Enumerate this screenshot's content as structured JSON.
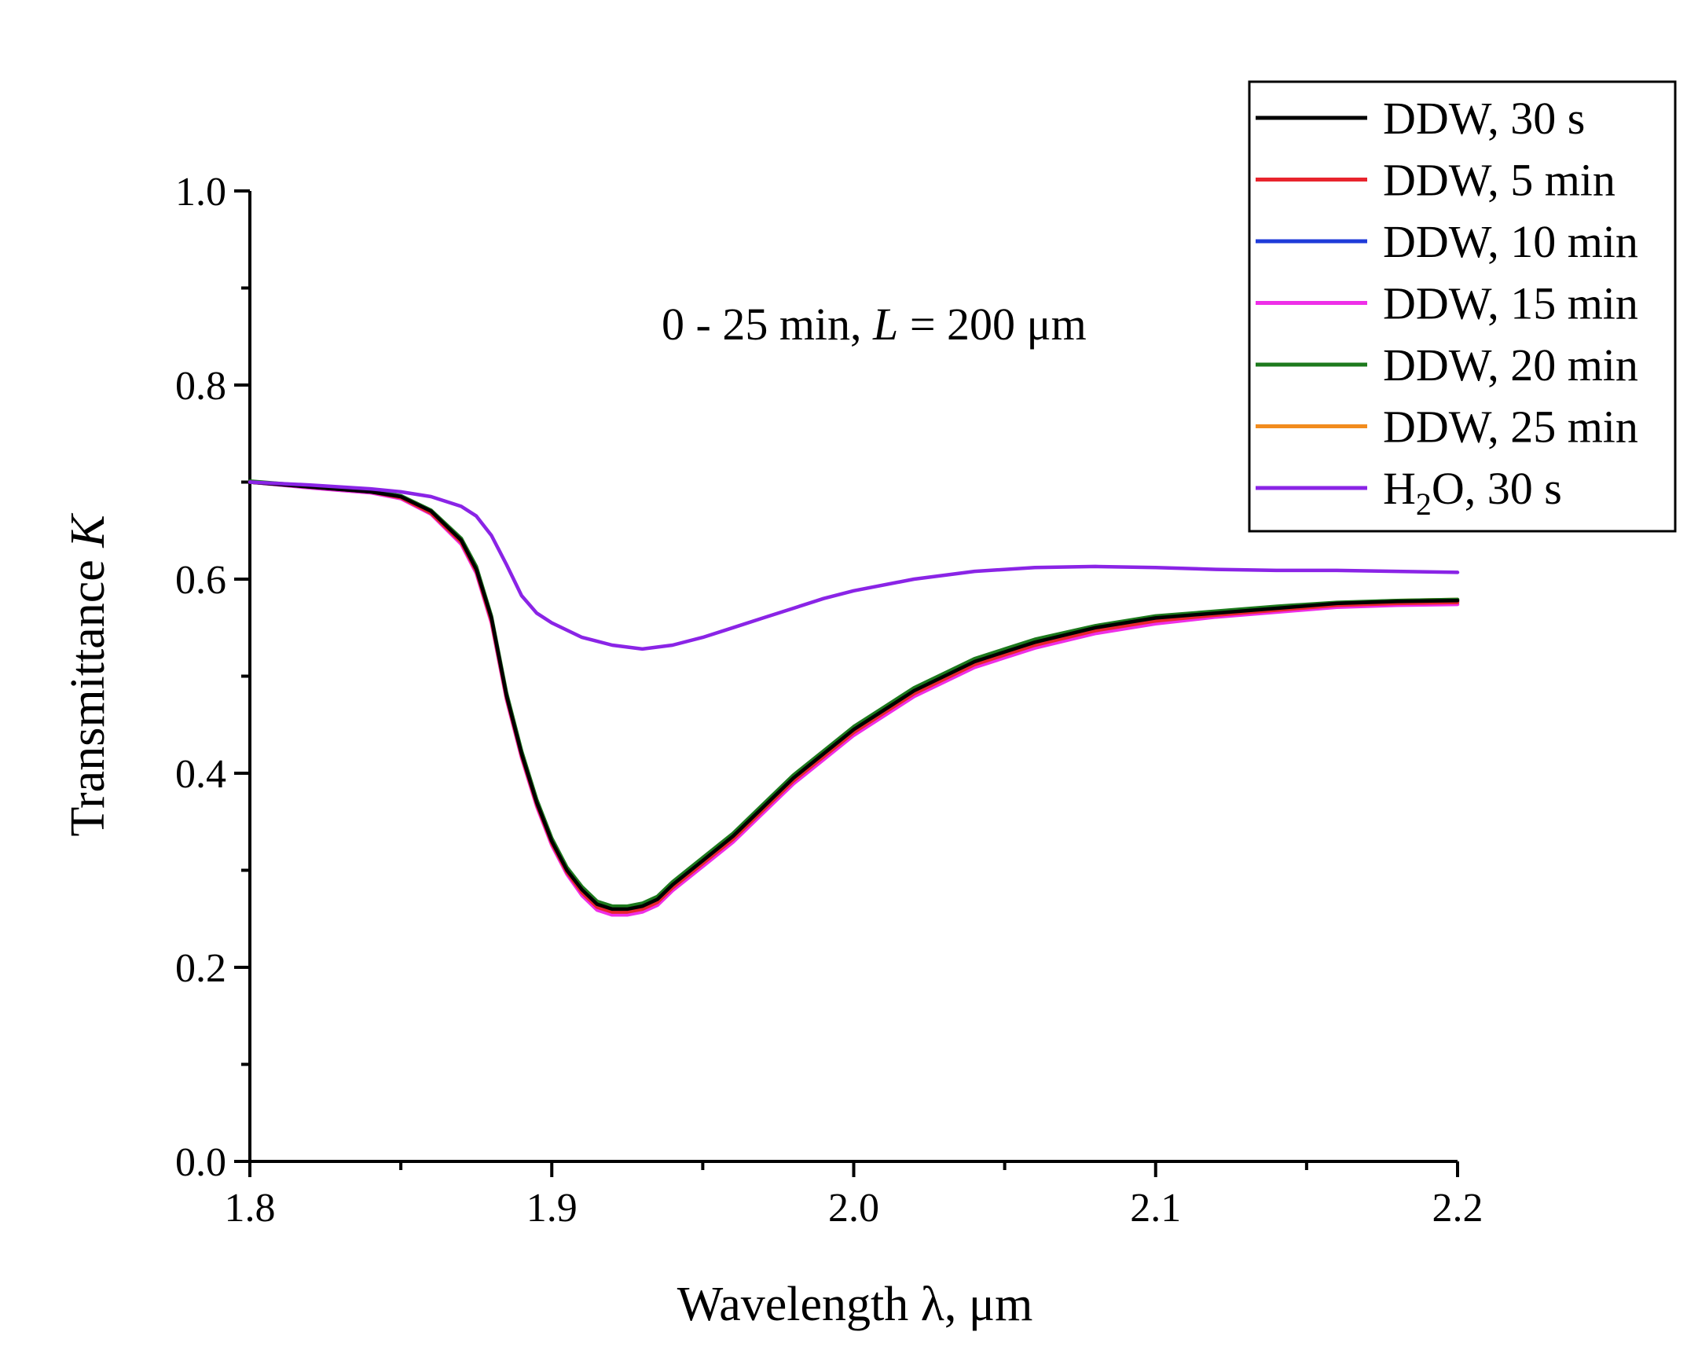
{
  "chart_data": {
    "type": "line",
    "xlabel": "Wavelength λ, μm",
    "ylabel_main": "Transmittance ",
    "ylabel_italic": "K",
    "xlim": [
      1.8,
      2.2
    ],
    "ylim": [
      0.0,
      1.0
    ],
    "x_ticks": [
      "1.8",
      "1.9",
      "2.0",
      "2.1",
      "2.2"
    ],
    "y_ticks": [
      "0.0",
      "0.2",
      "0.4",
      "0.6",
      "0.8",
      "1.0"
    ],
    "grid": false,
    "legend_position": "top-right",
    "annotation": {
      "prefix": "0 - 25 min, ",
      "italic": "L",
      "suffix": " = 200 μm"
    },
    "series": [
      {
        "name": "DDW, 30 s",
        "color": "#000000",
        "x": [
          1.8,
          1.82,
          1.84,
          1.85,
          1.86,
          1.87,
          1.875,
          1.88,
          1.885,
          1.89,
          1.895,
          1.9,
          1.905,
          1.91,
          1.915,
          1.92,
          1.925,
          1.93,
          1.935,
          1.94,
          1.95,
          1.96,
          1.97,
          1.98,
          1.99,
          2.0,
          2.01,
          2.02,
          2.03,
          2.04,
          2.05,
          2.06,
          2.08,
          2.1,
          2.12,
          2.14,
          2.16,
          2.18,
          2.2
        ],
        "y": [
          0.7,
          0.695,
          0.69,
          0.685,
          0.67,
          0.64,
          0.61,
          0.56,
          0.48,
          0.42,
          0.37,
          0.33,
          0.3,
          0.28,
          0.265,
          0.26,
          0.26,
          0.263,
          0.27,
          0.285,
          0.31,
          0.335,
          0.365,
          0.395,
          0.42,
          0.445,
          0.465,
          0.485,
          0.5,
          0.515,
          0.525,
          0.535,
          0.55,
          0.56,
          0.565,
          0.57,
          0.575,
          0.577,
          0.578
        ]
      },
      {
        "name": "DDW, 5 min",
        "color": "#e8242d",
        "x": [
          1.8,
          1.82,
          1.84,
          1.85,
          1.86,
          1.87,
          1.875,
          1.88,
          1.885,
          1.89,
          1.895,
          1.9,
          1.905,
          1.91,
          1.915,
          1.92,
          1.925,
          1.93,
          1.935,
          1.94,
          1.95,
          1.96,
          1.97,
          1.98,
          1.99,
          2.0,
          2.01,
          2.02,
          2.03,
          2.04,
          2.05,
          2.06,
          2.08,
          2.1,
          2.12,
          2.14,
          2.16,
          2.18,
          2.2
        ],
        "y": [
          0.7,
          0.695,
          0.69,
          0.684,
          0.668,
          0.638,
          0.608,
          0.557,
          0.478,
          0.418,
          0.368,
          0.328,
          0.298,
          0.277,
          0.262,
          0.257,
          0.257,
          0.26,
          0.267,
          0.282,
          0.307,
          0.332,
          0.362,
          0.392,
          0.417,
          0.442,
          0.462,
          0.482,
          0.497,
          0.512,
          0.522,
          0.532,
          0.547,
          0.557,
          0.563,
          0.568,
          0.573,
          0.575,
          0.576
        ]
      },
      {
        "name": "DDW, 10 min",
        "color": "#1f3bd9",
        "x": [
          1.8,
          1.82,
          1.84,
          1.85,
          1.86,
          1.87,
          1.875,
          1.88,
          1.885,
          1.89,
          1.895,
          1.9,
          1.905,
          1.91,
          1.915,
          1.92,
          1.925,
          1.93,
          1.935,
          1.94,
          1.95,
          1.96,
          1.97,
          1.98,
          1.99,
          2.0,
          2.01,
          2.02,
          2.03,
          2.04,
          2.05,
          2.06,
          2.08,
          2.1,
          2.12,
          2.14,
          2.16,
          2.18,
          2.2
        ],
        "y": [
          0.7,
          0.695,
          0.69,
          0.685,
          0.669,
          0.639,
          0.609,
          0.558,
          0.479,
          0.419,
          0.369,
          0.329,
          0.299,
          0.278,
          0.263,
          0.258,
          0.258,
          0.261,
          0.268,
          0.283,
          0.308,
          0.333,
          0.363,
          0.393,
          0.418,
          0.443,
          0.463,
          0.483,
          0.498,
          0.513,
          0.523,
          0.533,
          0.548,
          0.558,
          0.564,
          0.569,
          0.574,
          0.576,
          0.577
        ]
      },
      {
        "name": "DDW, 15 min",
        "color": "#ee2fe8",
        "x": [
          1.8,
          1.82,
          1.84,
          1.85,
          1.86,
          1.87,
          1.875,
          1.88,
          1.885,
          1.89,
          1.895,
          1.9,
          1.905,
          1.91,
          1.915,
          1.92,
          1.925,
          1.93,
          1.935,
          1.94,
          1.95,
          1.96,
          1.97,
          1.98,
          1.99,
          2.0,
          2.01,
          2.02,
          2.03,
          2.04,
          2.05,
          2.06,
          2.08,
          2.1,
          2.12,
          2.14,
          2.16,
          2.18,
          2.2
        ],
        "y": [
          0.7,
          0.694,
          0.689,
          0.683,
          0.667,
          0.636,
          0.606,
          0.555,
          0.476,
          0.416,
          0.366,
          0.326,
          0.296,
          0.274,
          0.259,
          0.254,
          0.254,
          0.257,
          0.264,
          0.279,
          0.304,
          0.329,
          0.359,
          0.389,
          0.414,
          0.439,
          0.459,
          0.479,
          0.494,
          0.509,
          0.519,
          0.529,
          0.544,
          0.554,
          0.561,
          0.566,
          0.571,
          0.573,
          0.574
        ]
      },
      {
        "name": "DDW, 20 min",
        "color": "#1d7a1d",
        "x": [
          1.8,
          1.82,
          1.84,
          1.85,
          1.86,
          1.87,
          1.875,
          1.88,
          1.885,
          1.89,
          1.895,
          1.9,
          1.905,
          1.91,
          1.915,
          1.92,
          1.925,
          1.93,
          1.935,
          1.94,
          1.95,
          1.96,
          1.97,
          1.98,
          1.99,
          2.0,
          2.01,
          2.02,
          2.03,
          2.04,
          2.05,
          2.06,
          2.08,
          2.1,
          2.12,
          2.14,
          2.16,
          2.18,
          2.2
        ],
        "y": [
          0.701,
          0.696,
          0.691,
          0.686,
          0.671,
          0.642,
          0.613,
          0.562,
          0.483,
          0.423,
          0.373,
          0.333,
          0.303,
          0.283,
          0.268,
          0.263,
          0.263,
          0.266,
          0.273,
          0.288,
          0.313,
          0.338,
          0.368,
          0.398,
          0.423,
          0.448,
          0.468,
          0.488,
          0.503,
          0.518,
          0.528,
          0.538,
          0.552,
          0.562,
          0.567,
          0.572,
          0.576,
          0.578,
          0.579
        ]
      },
      {
        "name": "DDW, 25 min",
        "color": "#f28c1e",
        "x": [
          1.8,
          1.82,
          1.84,
          1.85,
          1.86,
          1.87,
          1.875,
          1.88,
          1.885,
          1.89,
          1.895,
          1.9,
          1.905,
          1.91,
          1.915,
          1.92,
          1.925,
          1.93,
          1.935,
          1.94,
          1.95,
          1.96,
          1.97,
          1.98,
          1.99,
          2.0,
          2.01,
          2.02,
          2.03,
          2.04,
          2.05,
          2.06,
          2.08,
          2.1,
          2.12,
          2.14,
          2.16,
          2.18,
          2.2
        ],
        "y": [
          0.7,
          0.695,
          0.69,
          0.684,
          0.668,
          0.637,
          0.607,
          0.556,
          0.477,
          0.417,
          0.367,
          0.327,
          0.297,
          0.276,
          0.261,
          0.256,
          0.256,
          0.259,
          0.266,
          0.281,
          0.306,
          0.331,
          0.361,
          0.391,
          0.416,
          0.441,
          0.461,
          0.481,
          0.496,
          0.511,
          0.521,
          0.531,
          0.546,
          0.556,
          0.563,
          0.569,
          0.575,
          0.578,
          0.579
        ]
      },
      {
        "name_prefix": "H",
        "name_sub": "2",
        "name_suffix": "O, 30 s",
        "color": "#8a24e6",
        "x": [
          1.8,
          1.82,
          1.84,
          1.85,
          1.86,
          1.87,
          1.875,
          1.88,
          1.885,
          1.89,
          1.895,
          1.9,
          1.91,
          1.92,
          1.93,
          1.94,
          1.95,
          1.96,
          1.97,
          1.98,
          1.99,
          2.0,
          2.02,
          2.04,
          2.06,
          2.08,
          2.1,
          2.12,
          2.14,
          2.16,
          2.18,
          2.2
        ],
        "y": [
          0.7,
          0.697,
          0.693,
          0.69,
          0.685,
          0.675,
          0.665,
          0.645,
          0.615,
          0.583,
          0.565,
          0.555,
          0.54,
          0.532,
          0.528,
          0.532,
          0.54,
          0.55,
          0.56,
          0.57,
          0.58,
          0.588,
          0.6,
          0.608,
          0.612,
          0.613,
          0.612,
          0.61,
          0.609,
          0.609,
          0.608,
          0.607
        ]
      }
    ]
  }
}
